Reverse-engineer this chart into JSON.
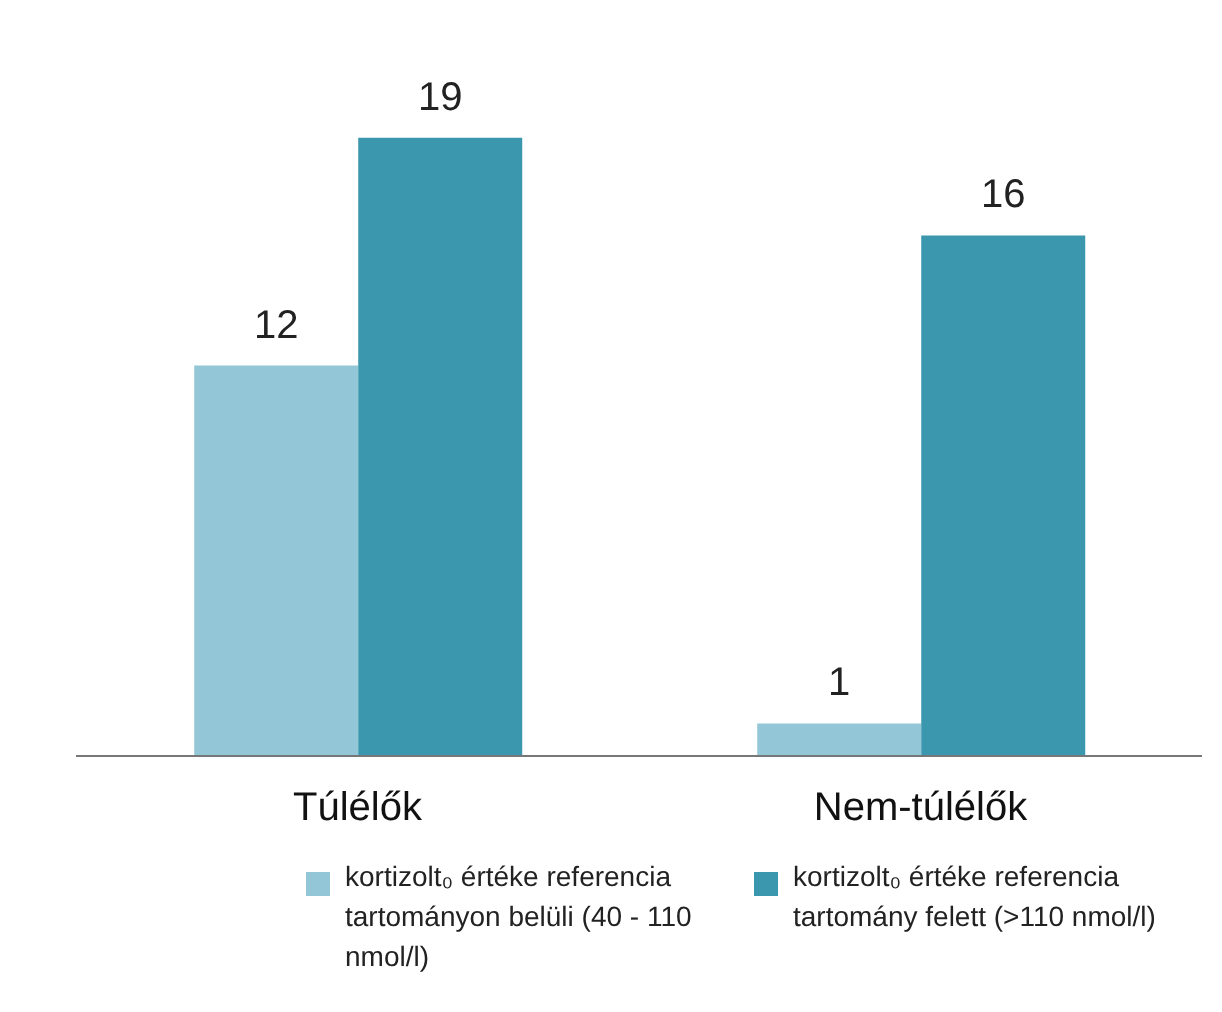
{
  "chart_data": {
    "type": "bar",
    "categories": [
      "Túlélők",
      "Nem-túlélők"
    ],
    "series": [
      {
        "name": "kortizolt₀ értéke referencia tartományon belüli (40 - 110 nmol/l)",
        "color": "#93c6d7",
        "values": [
          12,
          1
        ]
      },
      {
        "name": "kortizolt₀ értéke referencia tartomány felett (>110 nmol/l)",
        "color": "#3a97ae",
        "values": [
          19,
          16
        ]
      }
    ],
    "data_labels": true,
    "legend": "bottom",
    "grid": false
  }
}
